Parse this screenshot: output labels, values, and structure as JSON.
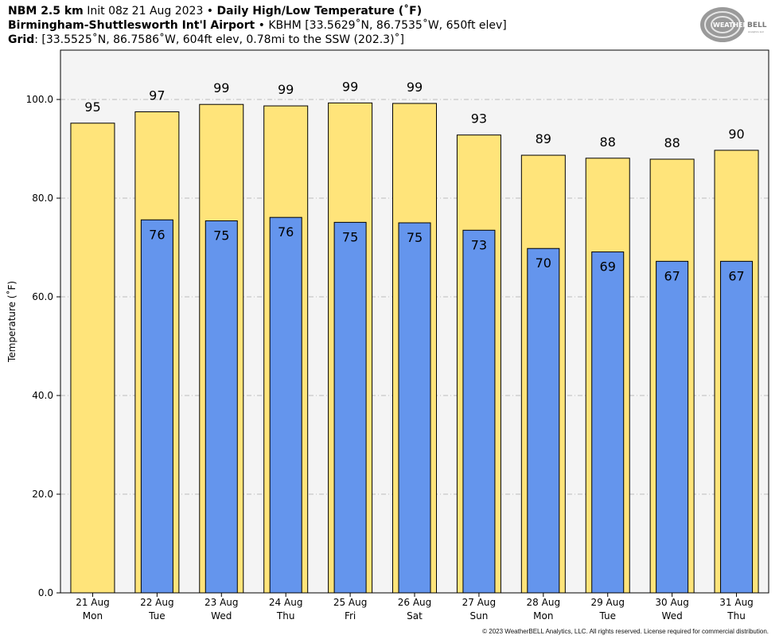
{
  "header": {
    "model": "NBM 2.5 km",
    "init": "Init 08z 21 Aug 2023",
    "separator": " • ",
    "product": "Daily High/Low Temperature (˚F)",
    "station_name": "Birmingham-Shuttlesworth Int'l Airport",
    "station_info": "KBHM [33.5629˚N, 86.7535˚W, 650ft elev]",
    "grid_label": "Grid",
    "grid_info": ": [33.5525˚N, 86.7586˚W, 604ft elev, 0.78mi to the SSW (202.3)˚]"
  },
  "logo": {
    "text_weather": "WEATHER",
    "text_bell": "BELL",
    "text_sub": "Analytics LLC"
  },
  "copyright": "© 2023 WeatherBELL Analytics, LLC. All rights reserved. License required for commercial distribution.",
  "colors": {
    "high_bar": "#FFE47A",
    "low_bar": "#6495ED",
    "plot_bg": "#F4F4F4",
    "grid": "#AAAAAA"
  },
  "chart_data": {
    "type": "bar",
    "ylabel": "Temperature (˚F)",
    "ylim": [
      0,
      110
    ],
    "yticks": [
      0,
      20,
      40,
      60,
      80,
      100
    ],
    "ytick_labels": [
      "0.0",
      "20.0",
      "40.0",
      "60.0",
      "80.0",
      "100.0"
    ],
    "grid": true,
    "categories": [
      {
        "date": "21 Aug",
        "day": "Mon"
      },
      {
        "date": "22 Aug",
        "day": "Tue"
      },
      {
        "date": "23 Aug",
        "day": "Wed"
      },
      {
        "date": "24 Aug",
        "day": "Thu"
      },
      {
        "date": "25 Aug",
        "day": "Fri"
      },
      {
        "date": "26 Aug",
        "day": "Sat"
      },
      {
        "date": "27 Aug",
        "day": "Sun"
      },
      {
        "date": "28 Aug",
        "day": "Mon"
      },
      {
        "date": "29 Aug",
        "day": "Tue"
      },
      {
        "date": "30 Aug",
        "day": "Wed"
      },
      {
        "date": "31 Aug",
        "day": "Thu"
      }
    ],
    "series": [
      {
        "values": [
          95.2,
          97.5,
          99.0,
          98.7,
          99.3,
          99.2,
          92.8,
          88.7,
          88.1,
          87.9,
          89.7
        ],
        "labels": [
          "95",
          "97",
          "99",
          "99",
          "99",
          "99",
          "93",
          "89",
          "88",
          "88",
          "90"
        ]
      },
      {
        "values": [
          null,
          75.6,
          75.4,
          76.1,
          75.1,
          75.0,
          73.5,
          69.8,
          69.1,
          67.2,
          67.2
        ],
        "labels": [
          "",
          "76",
          "75",
          "76",
          "75",
          "75",
          "73",
          "70",
          "69",
          "67",
          "67"
        ]
      }
    ]
  }
}
